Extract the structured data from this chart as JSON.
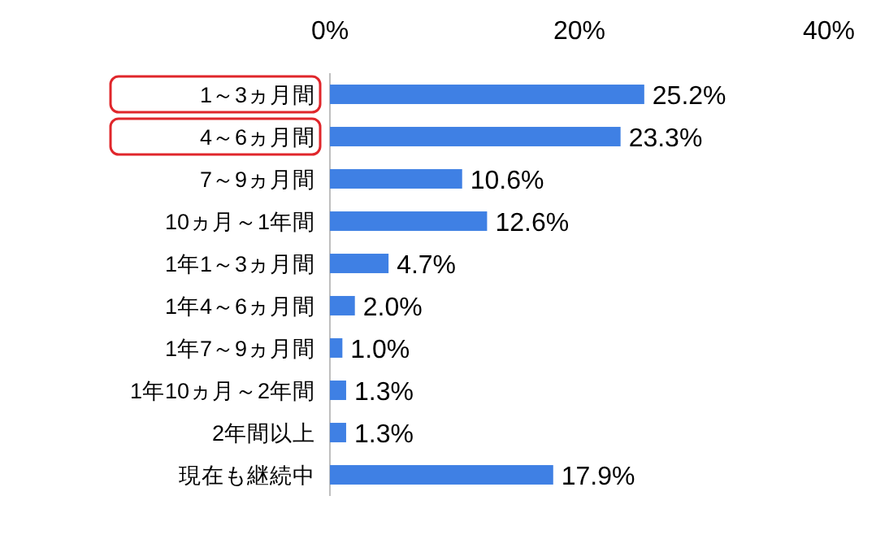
{
  "chart_data": {
    "type": "bar",
    "orientation": "horizontal",
    "categories": [
      "1～3ヵ月間",
      "4～6ヵ月間",
      "7～9ヵ月間",
      "10ヵ月～1年間",
      "1年1～3ヵ月間",
      "1年4～6ヵ月間",
      "1年7～9ヵ月間",
      "1年10ヵ月～2年間",
      "2年間以上",
      "現在も継続中"
    ],
    "values": [
      25.2,
      23.3,
      10.6,
      12.6,
      4.7,
      2.0,
      1.0,
      1.3,
      1.3,
      17.9
    ],
    "value_labels": [
      "25.2%",
      "23.3%",
      "10.6%",
      "12.6%",
      "4.7%",
      "2.0%",
      "1.0%",
      "1.3%",
      "1.3%",
      "17.9%"
    ],
    "color": "#3f80e4",
    "xlim": [
      0,
      40
    ],
    "xticks": [
      {
        "value": 0,
        "label": "0%"
      },
      {
        "value": 20,
        "label": "20%"
      },
      {
        "value": 40,
        "label": "40%"
      }
    ],
    "grid": false
  }
}
